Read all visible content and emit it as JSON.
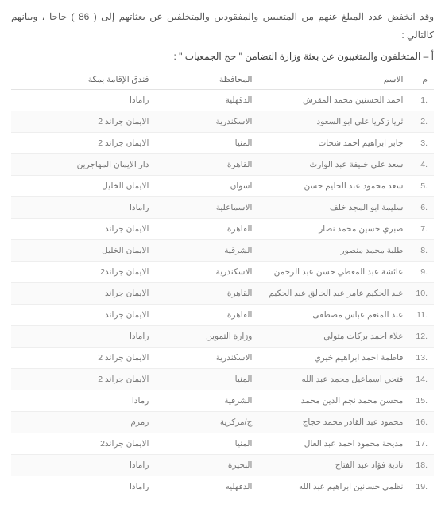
{
  "intro": "وقد انخفض عدد المبلغ عنهم من المتغيبين والمفقودين والمتخلفين عن بعثاتهم إلى ( 86 ) حاجا ، وبيانهم كالتالي :",
  "subhead": "أ – المتخلفون والمتغيبون عن بعثة وزارة التضامن \" حج الجمعيات \" :",
  "headers": {
    "num": "م",
    "name": "الاسم",
    "gov": "المحافظة",
    "hotel": "فندق الإقامة بمكة"
  },
  "rows": [
    {
      "n": ".1",
      "name": "احمد الحسنين محمد المقرش",
      "gov": "الدقهلية",
      "hotel": "رامادا"
    },
    {
      "n": ".2",
      "name": "ثريا زكريا علي ابو السعود",
      "gov": "الاسكندرية",
      "hotel": "الايمان جراند 2"
    },
    {
      "n": ".3",
      "name": "جابر ابراهيم احمد شحات",
      "gov": "المنيا",
      "hotel": "الايمان جراند 2"
    },
    {
      "n": ".4",
      "name": "سعد علي خليفة عبد الوارث",
      "gov": "القاهرة",
      "hotel": "دار الايمان المهاجرين"
    },
    {
      "n": ".5",
      "name": "سعد محمود عبد الحليم حسن",
      "gov": "اسوان",
      "hotel": "الايمان الخليل"
    },
    {
      "n": ".6",
      "name": "سليمة ابو المجد خلف",
      "gov": "الاسماعلية",
      "hotel": "رامادا"
    },
    {
      "n": ".7",
      "name": "صبري حسين محمد نصار",
      "gov": "القاهرة",
      "hotel": "الايمان جراند"
    },
    {
      "n": ".8",
      "name": "طلبة محمد منصور",
      "gov": "الشرقية",
      "hotel": "الايمان الخليل"
    },
    {
      "n": ".9",
      "name": "عائشة عبد المعطي حسن عبد الرحمن",
      "gov": "الاسكندرية",
      "hotel": "الايمان جراند2"
    },
    {
      "n": ".10",
      "name": "عبد الحكيم عامر عبد الخالق عبد الحكيم",
      "gov": "القاهرة",
      "hotel": "الايمان جراند"
    },
    {
      "n": ".11",
      "name": "عبد المنعم عباس مصطفى",
      "gov": "القاهرة",
      "hotel": "الايمان جراند"
    },
    {
      "n": ".12",
      "name": "علاء احمد بركات متولي",
      "gov": "وزارة التموين",
      "hotel": "رامادا"
    },
    {
      "n": ".13",
      "name": "فاطمة احمد ابراهيم خيري",
      "gov": "الاسكندرية",
      "hotel": "الايمان جراند 2"
    },
    {
      "n": ".14",
      "name": "فتحي اسماعيل محمد عبد الله",
      "gov": "المنيا",
      "hotel": "الايمان جراند 2"
    },
    {
      "n": ".15",
      "name": "محسن محمد نجم الدين محمد",
      "gov": "الشرقية",
      "hotel": "رمادا"
    },
    {
      "n": ".16",
      "name": "محمود عبد القادر محمد حجاج",
      "gov": "ج/مركزية",
      "hotel": "زمزم"
    },
    {
      "n": ".17",
      "name": "مديحة محمود احمد عبد العال",
      "gov": "المنيا",
      "hotel": "الايمان جراند2"
    },
    {
      "n": ".18",
      "name": "نادية فؤاد عبد الفتاح",
      "gov": "البحيرة",
      "hotel": "رامادا"
    },
    {
      "n": ".19",
      "name": "نظمي حسانين ابراهيم عبد الله",
      "gov": "الدقهليه",
      "hotel": "رامادا"
    }
  ]
}
